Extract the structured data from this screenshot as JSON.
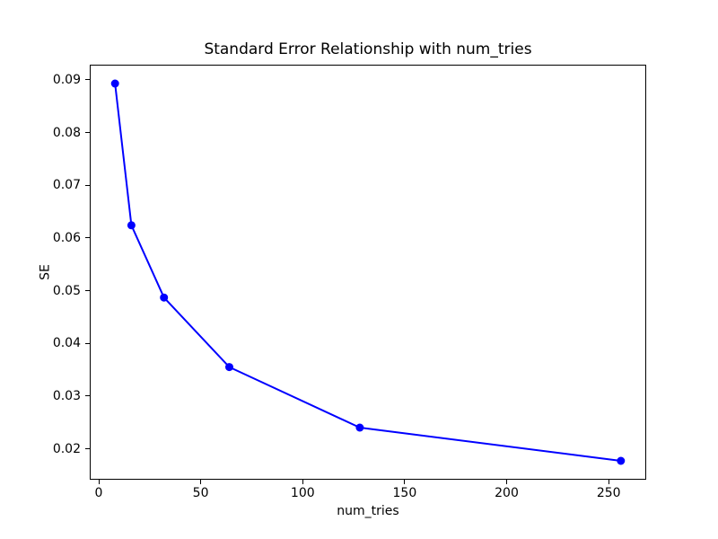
{
  "chart_data": {
    "type": "line",
    "title": "Standard Error Relationship with num_tries",
    "xlabel": "num_tries",
    "ylabel": "SE",
    "x": [
      8,
      16,
      32,
      64,
      128,
      256
    ],
    "y": [
      0.0893,
      0.0624,
      0.0487,
      0.0355,
      0.024,
      0.0177
    ],
    "xticks": [
      0,
      50,
      100,
      150,
      200,
      250
    ],
    "xtick_labels": [
      "0",
      "50",
      "100",
      "150",
      "200",
      "250"
    ],
    "yticks": [
      0.02,
      0.03,
      0.04,
      0.05,
      0.06,
      0.07,
      0.08,
      0.09
    ],
    "ytick_labels": [
      "0.02",
      "0.03",
      "0.04",
      "0.05",
      "0.06",
      "0.07",
      "0.08",
      "0.09"
    ],
    "xlim": [
      -4.4,
      268.4
    ],
    "ylim": [
      0.01412,
      0.09288
    ],
    "line_color": "#0000ff",
    "marker": "circle",
    "marker_color": "#0000ff",
    "grid": false,
    "legend": null,
    "background_color": "#ffffff",
    "spine_color": "#000000"
  }
}
